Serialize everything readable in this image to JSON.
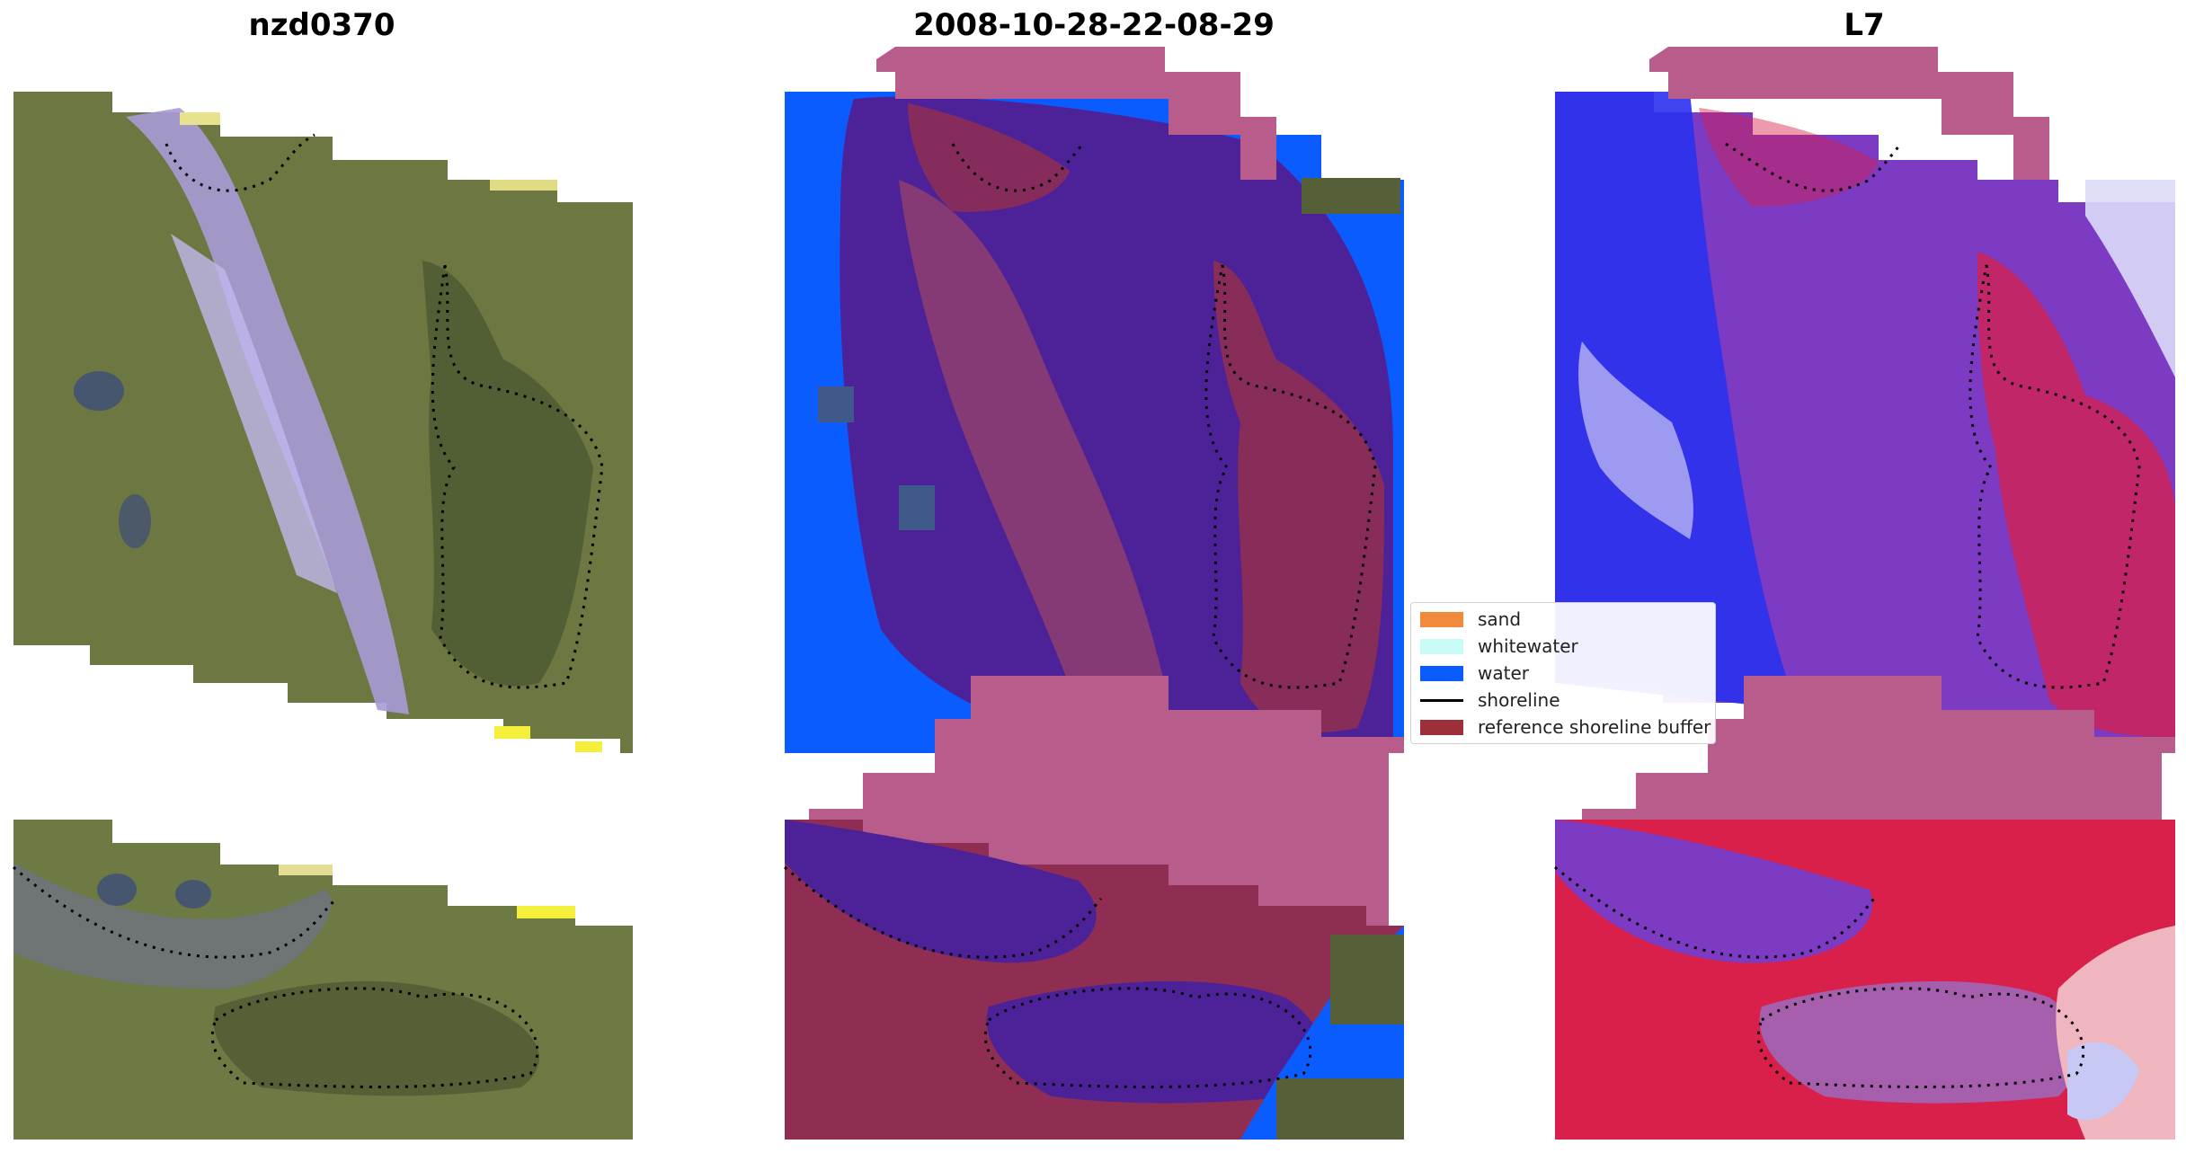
{
  "panels": [
    {
      "title": "nzd0370",
      "style": "rgb"
    },
    {
      "title": "2008-10-28-22-08-29",
      "style": "classified"
    },
    {
      "title": "L7",
      "style": "index"
    }
  ],
  "legend": {
    "items": [
      {
        "label": "sand",
        "color": "#f28a3c",
        "kind": "patch"
      },
      {
        "label": "whitewater",
        "color": "#c8fbf6",
        "kind": "patch"
      },
      {
        "label": "water",
        "color": "#0a5cff",
        "kind": "patch"
      },
      {
        "label": "shoreline",
        "color": "#000000",
        "kind": "line"
      },
      {
        "label": "reference shoreline buffer",
        "color": "#9e2f3a",
        "kind": "patch"
      }
    ]
  },
  "colors": {
    "land_green": "#6f7a45",
    "river_lavender": "#a79ad8",
    "water_purple": "#4d2299",
    "buffer_maroon": "#8f2e52",
    "buffer_pink": "#b85c8c",
    "index_red": "#d8204a",
    "index_blue": "#2a32f0"
  }
}
